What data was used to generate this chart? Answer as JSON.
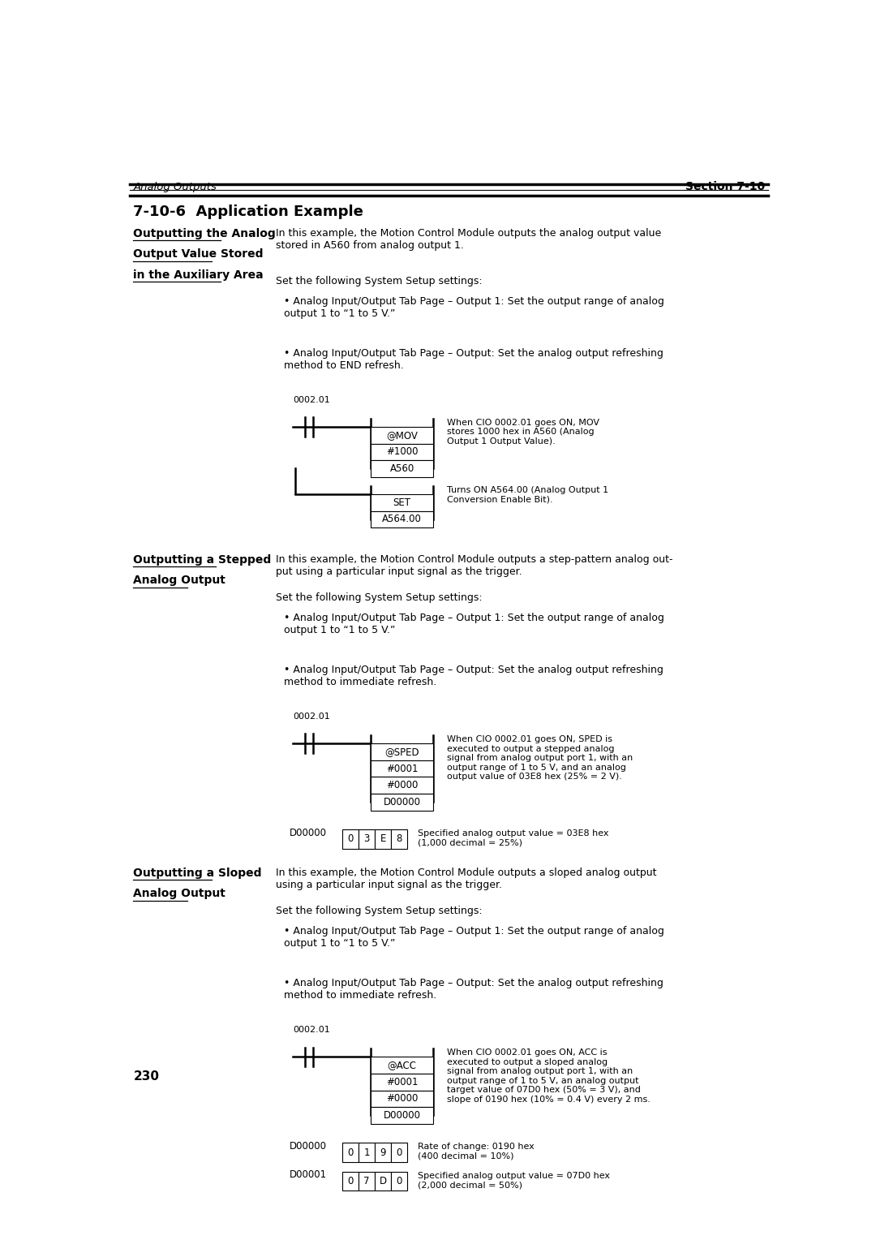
{
  "page_width": 10.8,
  "page_height": 15.28,
  "bg_color": "#ffffff",
  "header_italic_left": "Analog Outputs",
  "header_bold_right": "Section 7-10",
  "page_number": "230",
  "section_title": "7-10-6  Application Example",
  "sections": [
    {
      "heading_lines": [
        "Outputting the Analog",
        "Output Value Stored",
        "in the Auxiliary Area"
      ],
      "intro": "In this example, the Motion Control Module outputs the analog output value\nstored in A560 from analog output 1.",
      "setup_title": "Set the following System Setup settings:",
      "bullets": [
        "Analog Input/Output Tab Page – Output 1: Set the output range of analog\noutput 1 to “1 to 5 V.”",
        "Analog Input/Output Tab Page – Output: Set the analog output refreshing\nmethod to END refresh."
      ],
      "ladder": {
        "contact_label": "0002.01",
        "rung1": {
          "boxes": [
            "@MOV",
            "#1000",
            "A560"
          ],
          "comment": "When CIO 0002.01 goes ON, MOV\nstores 1000 hex in A560 (Analog\nOutput 1 Output Value)."
        },
        "rung2": {
          "boxes": [
            "SET",
            "A564.00"
          ],
          "comment": "Turns ON A564.00 (Analog Output 1\nConversion Enable Bit)."
        }
      }
    },
    {
      "heading_lines": [
        "Outputting a Stepped",
        "Analog Output"
      ],
      "intro": "In this example, the Motion Control Module outputs a step-pattern analog out-\nput using a particular input signal as the trigger.",
      "setup_title": "Set the following System Setup settings:",
      "bullets": [
        "Analog Input/Output Tab Page – Output 1: Set the output range of analog\noutput 1 to “1 to 5 V.”",
        "Analog Input/Output Tab Page – Output: Set the analog output refreshing\nmethod to immediate refresh."
      ],
      "ladder": {
        "contact_label": "0002.01",
        "rung1": {
          "boxes": [
            "@SPED",
            "#0001",
            "#0000",
            "D00000"
          ],
          "comment": "When CIO 0002.01 goes ON, SPED is\nexecuted to output a stepped analog\nsignal from analog output port 1, with an\noutput range of 1 to 5 V, and an analog\noutput value of 03E8 hex (25% = 2 V)."
        }
      },
      "table": {
        "label": "D00000",
        "cells": [
          "0",
          "3",
          "E",
          "8"
        ],
        "comment": "Specified analog output value = 03E8 hex\n(1,000 decimal = 25%)"
      }
    },
    {
      "heading_lines": [
        "Outputting a Sloped",
        "Analog Output"
      ],
      "intro": "In this example, the Motion Control Module outputs a sloped analog output\nusing a particular input signal as the trigger.",
      "setup_title": "Set the following System Setup settings:",
      "bullets": [
        "Analog Input/Output Tab Page – Output 1: Set the output range of analog\noutput 1 to “1 to 5 V.”",
        "Analog Input/Output Tab Page – Output: Set the analog output refreshing\nmethod to immediate refresh."
      ],
      "ladder": {
        "contact_label": "0002.01",
        "rung1": {
          "boxes": [
            "@ACC",
            "#0001",
            "#0000",
            "D00000"
          ],
          "comment": "When CIO 0002.01 goes ON, ACC is\nexecuted to output a sloped analog\nsignal from analog output port 1, with an\noutput range of 1 to 5 V, an analog output\ntarget value of 07D0 hex (50% = 3 V), and\nslope of 0190 hex (10% = 0.4 V) every 2 ms."
        }
      },
      "table2": {
        "rows": [
          {
            "label": "D00000",
            "cells": [
              "0",
              "1",
              "9",
              "0"
            ],
            "comment": "Rate of change: 0190 hex\n(400 decimal = 10%)"
          },
          {
            "label": "D00001",
            "cells": [
              "0",
              "7",
              "D",
              "0"
            ],
            "comment": "Specified analog output value = 07D0 hex\n(2,000 decimal = 50%)"
          }
        ]
      }
    }
  ]
}
